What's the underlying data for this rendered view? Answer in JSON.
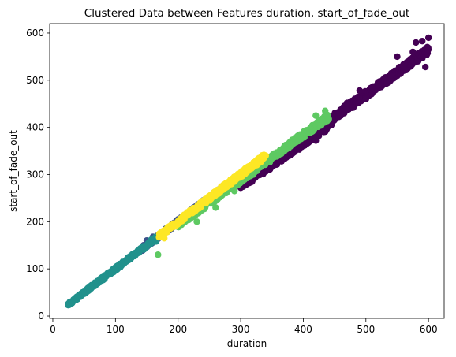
{
  "chart_data": {
    "type": "scatter",
    "title": "Clustered Data between Features duration, start_of_fade_out",
    "xlabel": "duration",
    "ylabel": "start_of_fade_out",
    "xlim": [
      -5,
      625
    ],
    "ylim": [
      -5,
      620
    ],
    "xticks": [
      0,
      100,
      200,
      300,
      400,
      500,
      600
    ],
    "yticks": [
      0,
      100,
      200,
      300,
      400,
      500,
      600
    ],
    "grid": false,
    "legend": "none",
    "clusters": [
      {
        "color": "#440154",
        "ranges": [
          [
            300,
            440,
            0.915
          ],
          [
            440,
            600,
            0.94
          ]
        ],
        "points": [
          [
            300,
            272
          ],
          [
            320,
            300
          ],
          [
            350,
            318
          ],
          [
            380,
            350
          ],
          [
            400,
            370
          ],
          [
            410,
            380
          ],
          [
            420,
            372
          ],
          [
            430,
            392
          ],
          [
            445,
            405
          ],
          [
            460,
            425
          ],
          [
            480,
            442
          ],
          [
            500,
            460
          ],
          [
            520,
            490
          ],
          [
            540,
            510
          ],
          [
            560,
            530
          ],
          [
            575,
            560
          ],
          [
            580,
            580
          ],
          [
            590,
            583
          ],
          [
            600,
            590
          ],
          [
            595,
            528
          ],
          [
            470,
            452
          ],
          [
            490,
            478
          ],
          [
            510,
            485
          ],
          [
            530,
            505
          ],
          [
            550,
            550
          ]
        ]
      },
      {
        "color": "#3b528b",
        "ranges": [
          [
            140,
            280,
            1.0
          ]
        ],
        "points": [
          [
            150,
            160
          ],
          [
            160,
            168
          ],
          [
            180,
            185
          ],
          [
            200,
            205
          ],
          [
            220,
            225
          ],
          [
            240,
            245
          ],
          [
            260,
            262
          ],
          [
            270,
            260
          ],
          [
            145,
            150
          ]
        ]
      },
      {
        "color": "#21918c",
        "ranges": [
          [
            25,
            165,
            1.0
          ]
        ],
        "points": [
          [
            25,
            25
          ],
          [
            30,
            30
          ],
          [
            40,
            40
          ],
          [
            60,
            60
          ],
          [
            80,
            80
          ],
          [
            100,
            100
          ],
          [
            120,
            118
          ],
          [
            140,
            140
          ],
          [
            160,
            162
          ],
          [
            165,
            158
          ]
        ]
      },
      {
        "color": "#5ec962",
        "ranges": [
          [
            200,
            440,
            0.96
          ]
        ],
        "points": [
          [
            168,
            130
          ],
          [
            230,
            200
          ],
          [
            260,
            230
          ],
          [
            290,
            265
          ],
          [
            320,
            300
          ],
          [
            350,
            335
          ],
          [
            370,
            355
          ],
          [
            390,
            375
          ],
          [
            410,
            395
          ],
          [
            430,
            415
          ],
          [
            435,
            435
          ],
          [
            420,
            425
          ]
        ]
      },
      {
        "color": "#fde725",
        "ranges": [
          [
            170,
            340,
            1.0
          ]
        ],
        "points": [
          [
            178,
            165
          ],
          [
            195,
            190
          ],
          [
            210,
            205
          ],
          [
            230,
            228
          ],
          [
            250,
            245
          ],
          [
            270,
            268
          ],
          [
            290,
            285
          ],
          [
            310,
            305
          ],
          [
            330,
            325
          ],
          [
            340,
            340
          ]
        ]
      }
    ]
  }
}
